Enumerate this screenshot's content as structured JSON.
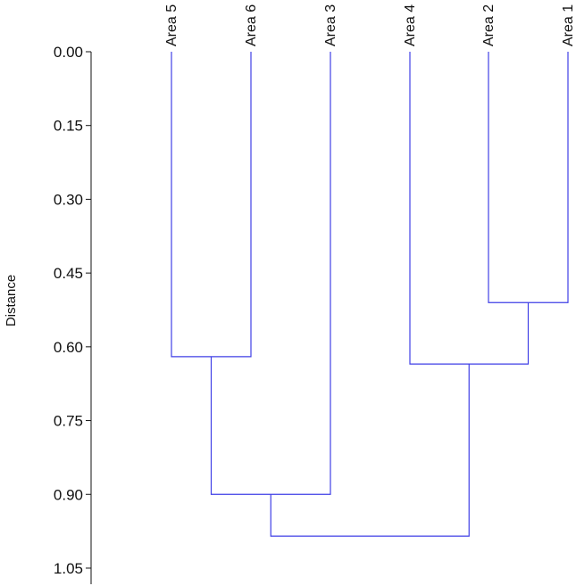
{
  "chart_data": {
    "type": "dendrogram",
    "ylabel": "Distance",
    "ylim": [
      0.0,
      1.05
    ],
    "yticks": [
      "0.00",
      "0.15",
      "0.30",
      "0.45",
      "0.60",
      "0.75",
      "0.90",
      "1.05"
    ],
    "leaves": [
      "Area 5",
      "Area 6",
      "Area 3",
      "Area 4",
      "Area 2",
      "Area 1"
    ],
    "merges": [
      {
        "left": "Area 2",
        "right": "Area 1",
        "height": 0.51
      },
      {
        "left": "Area 5",
        "right": "Area 6",
        "height": 0.62
      },
      {
        "left": "Area 4",
        "right": "Area 2 + Area 1",
        "height": 0.635
      },
      {
        "left": "Area 5 + Area 6",
        "right": "Area 3",
        "height": 0.9
      },
      {
        "left": "Area 5 + Area 6 + Area 3",
        "right": "Area 4 + Area 2 + Area 1",
        "height": 0.985
      }
    ],
    "grid": false,
    "line_color": "#3f3fe6",
    "axis_color": "#111111"
  }
}
